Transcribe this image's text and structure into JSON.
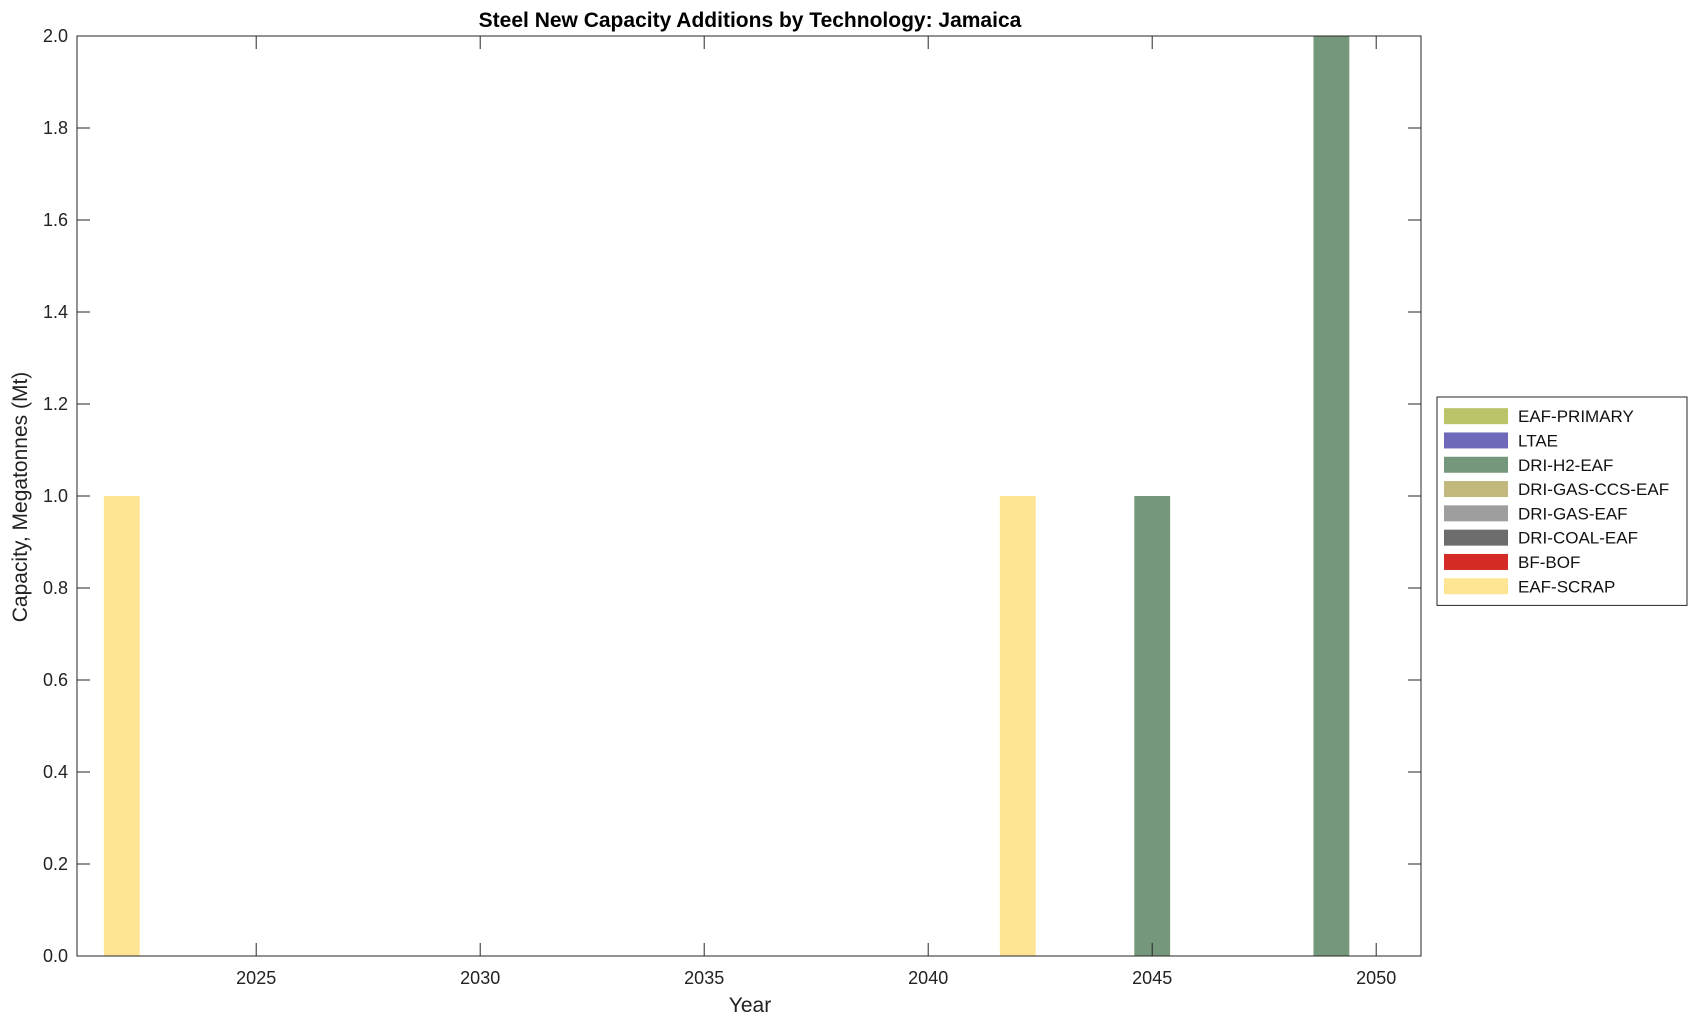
{
  "chart_data": {
    "type": "bar",
    "stacked": true,
    "title": "Steel New Capacity Additions by Technology: Jamaica",
    "xlabel": "Year",
    "ylabel": "Capacity, Megatonnes (Mt)",
    "xlim": [
      2021,
      2051
    ],
    "ylim": [
      0,
      2
    ],
    "xticks": [
      2025,
      2030,
      2035,
      2040,
      2045,
      2050
    ],
    "yticks": [
      0.0,
      0.2,
      0.4,
      0.6,
      0.8,
      1.0,
      1.2,
      1.4,
      1.6,
      1.8,
      2.0
    ],
    "bar_width_years": 0.8,
    "grid": false,
    "legend_position": "outside-right",
    "x": [
      2022,
      2042,
      2045,
      2049
    ],
    "series": [
      {
        "name": "EAF-PRIMARY",
        "color": "#bcc46a",
        "values": [
          0,
          0,
          0,
          0
        ]
      },
      {
        "name": "LTAE",
        "color": "#6f69b9",
        "values": [
          0,
          0,
          0,
          0
        ]
      },
      {
        "name": "DRI-H2-EAF",
        "color": "#75977b",
        "values": [
          0,
          0,
          1,
          2
        ]
      },
      {
        "name": "DRI-GAS-CCS-EAF",
        "color": "#c2b77d",
        "values": [
          0,
          0,
          0,
          0
        ]
      },
      {
        "name": "DRI-GAS-EAF",
        "color": "#9e9e9e",
        "values": [
          0,
          0,
          0,
          0
        ]
      },
      {
        "name": "DRI-COAL-EAF",
        "color": "#6d6d6d",
        "values": [
          0,
          0,
          0,
          0
        ]
      },
      {
        "name": "BF-BOF",
        "color": "#d42b26",
        "values": [
          0,
          0,
          0,
          0
        ]
      },
      {
        "name": "EAF-SCRAP",
        "color": "#fde594",
        "values": [
          1,
          1,
          0,
          0
        ]
      }
    ]
  }
}
